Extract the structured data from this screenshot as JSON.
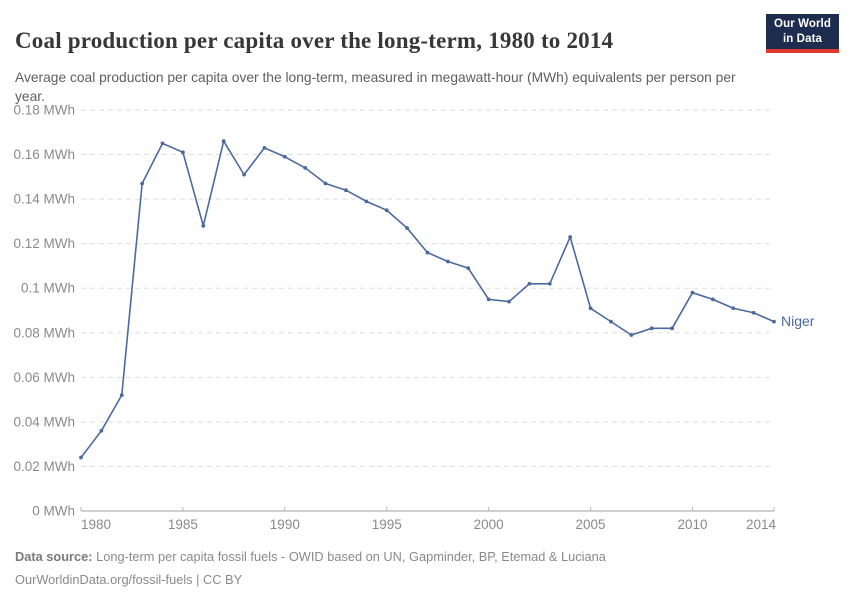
{
  "header": {
    "title": "Coal production per capita over the long-term, 1980 to 2014",
    "subtitle": "Average coal production per capita over the long-term, measured in megawatt-hour (MWh) equivalents per person per year.",
    "logo": {
      "line1": "Our World",
      "line2": "in Data"
    }
  },
  "chart_data": {
    "type": "line",
    "title": "Coal production per capita over the long-term, 1980 to 2014",
    "unit": "MWh",
    "xlabel": "",
    "ylabel": "",
    "xlim": [
      1980,
      2014
    ],
    "ylim": [
      0,
      0.18
    ],
    "grid": "horizontal-dashed",
    "legend_position": "line-end-label",
    "x_ticks": [
      1980,
      1985,
      1990,
      1995,
      2000,
      2005,
      2010,
      2014
    ],
    "y_ticks": [
      {
        "value": 0,
        "label": "0 MWh"
      },
      {
        "value": 0.02,
        "label": "0.02 MWh"
      },
      {
        "value": 0.04,
        "label": "0.04 MWh"
      },
      {
        "value": 0.06,
        "label": "0.06 MWh"
      },
      {
        "value": 0.08,
        "label": "0.08 MWh"
      },
      {
        "value": 0.1,
        "label": "0.1 MWh"
      },
      {
        "value": 0.12,
        "label": "0.12 MWh"
      },
      {
        "value": 0.14,
        "label": "0.14 MWh"
      },
      {
        "value": 0.16,
        "label": "0.16 MWh"
      },
      {
        "value": 0.18,
        "label": "0.18 MWh"
      }
    ],
    "series": [
      {
        "name": "Niger",
        "color": "#4c6a9f",
        "years": [
          1980,
          1981,
          1982,
          1983,
          1984,
          1985,
          1986,
          1987,
          1988,
          1989,
          1990,
          1991,
          1992,
          1993,
          1994,
          1995,
          1996,
          1997,
          1998,
          1999,
          2000,
          2001,
          2002,
          2003,
          2004,
          2005,
          2006,
          2007,
          2008,
          2009,
          2010,
          2011,
          2012,
          2013,
          2014
        ],
        "values": [
          0.024,
          0.036,
          0.052,
          0.147,
          0.165,
          0.161,
          0.128,
          0.166,
          0.151,
          0.163,
          0.159,
          0.154,
          0.147,
          0.144,
          0.139,
          0.135,
          0.127,
          0.116,
          0.112,
          0.109,
          0.095,
          0.094,
          0.102,
          0.102,
          0.123,
          0.091,
          0.085,
          0.079,
          0.082,
          0.082,
          0.098,
          0.095,
          0.091,
          0.089,
          0.085
        ]
      }
    ]
  },
  "footer": {
    "source_label": "Data source:",
    "source_text": " Long-term per capita fossil fuels - OWID based on UN, Gapminder, BP, Etemad & Luciana",
    "license_line": "OurWorldinData.org/fossil-fuels | CC BY"
  },
  "colors": {
    "accent_line": "#4c6a9f",
    "logo_navy": "#1d2c4f",
    "logo_red": "#dd392e",
    "gridline": "#dedede",
    "axis_line": "#a1a1a1",
    "axis_text": "#8a8a8a",
    "title_text": "#373737",
    "subtitle_text": "#5f5f5f",
    "footer_text": "#8a8a8a"
  }
}
